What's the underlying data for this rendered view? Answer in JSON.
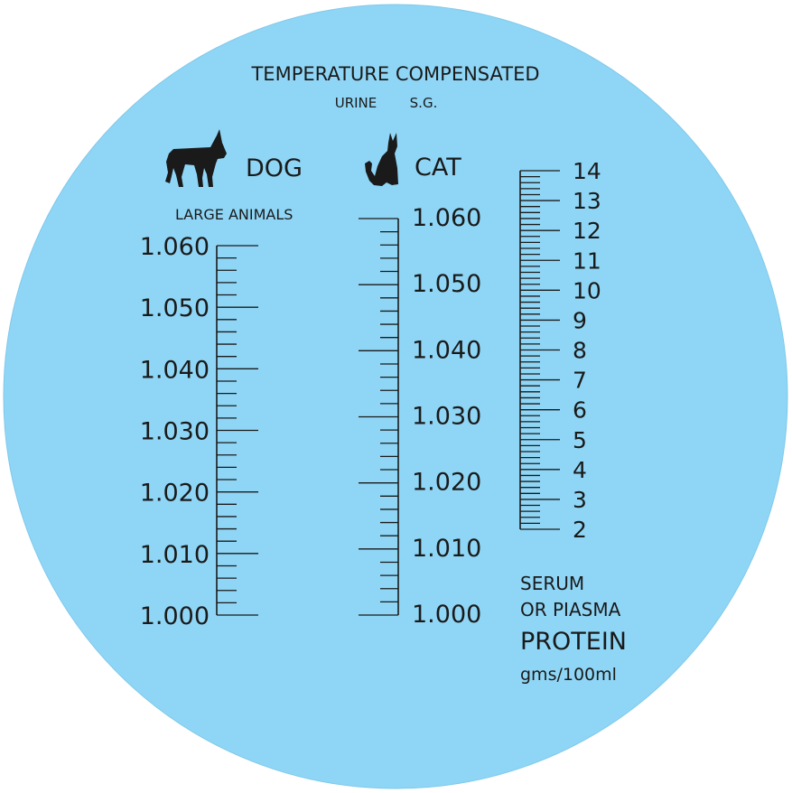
{
  "header": {
    "title": "TEMPERATURE COMPENSATED",
    "subtitle_left": "URINE",
    "subtitle_right": "S.G."
  },
  "dog": {
    "icon": "dog-silhouette-icon",
    "label": "DOG",
    "sublabel": "LARGE ANIMALS",
    "scale_labels": [
      "1.060",
      "1.050",
      "1.040",
      "1.030",
      "1.020",
      "1.010",
      "1.000"
    ],
    "range": [
      1.0,
      1.06
    ],
    "minor_step": 0.002
  },
  "cat": {
    "icon": "cat-silhouette-icon",
    "label": "CAT",
    "scale_labels": [
      "1.060",
      "1.050",
      "1.040",
      "1.030",
      "1.020",
      "1.010",
      "1.000"
    ],
    "range": [
      1.0,
      1.06
    ],
    "minor_step": 0.002
  },
  "protein": {
    "scale_labels": [
      "14",
      "13",
      "12",
      "11",
      "10",
      "9",
      "8",
      "7",
      "6",
      "5",
      "4",
      "3",
      "2"
    ],
    "range": [
      2,
      14
    ],
    "minor_step": 0.2,
    "serum": "SERUM",
    "plasma": "OR PIASMA",
    "title": "PROTEIN",
    "unit": "gms/100ml"
  },
  "colors": {
    "background": "#8fd6f6",
    "ink": "#1a1a1a"
  }
}
